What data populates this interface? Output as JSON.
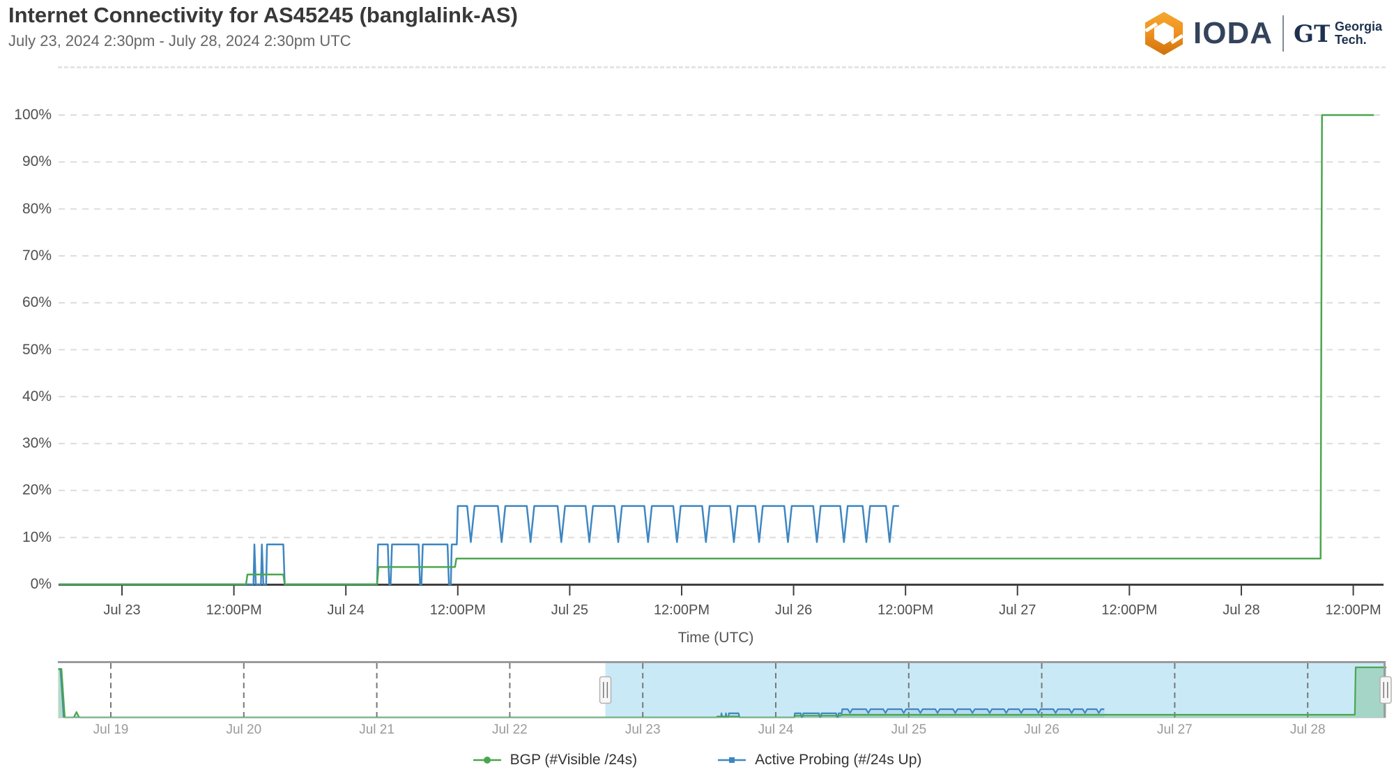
{
  "header": {
    "title": "Internet Connectivity for AS45245 (banglalink-AS)",
    "subtitle": "July 23, 2024 2:30pm - July 28, 2024 2:30pm UTC",
    "brand": "IODA",
    "gt": {
      "mark": "GT",
      "line1": "Georgia",
      "line2": "Tech."
    }
  },
  "colors": {
    "bgp_green": "#4aa64e",
    "probing_blue": "#3e86c2",
    "axis": "#3f3f3f",
    "gridline": "#dcdcdc",
    "nav_selection": "#c6e7f5",
    "ioda_orange_light": "#F5A830",
    "ioda_orange_dark": "#D0720C",
    "navy": "#1d314f"
  },
  "chart_data": {
    "type": "line",
    "title": "Internet Connectivity for AS45245 (banglalink-AS)",
    "subtitle": "July 23, 2024 2:30pm - July 28, 2024 2:30pm UTC",
    "xlabel": "Time (UTC)",
    "ylabel": "",
    "ylim": [
      0,
      100
    ],
    "grid": "horizontal-dashed",
    "legend_position": "bottom-center",
    "x_unit": "hours relative to Jul 23 2024 00:00 UTC",
    "x_range_main": [
      -6.75,
      134.2
    ],
    "x_range_navigator": [
      -105.5,
      134.0
    ],
    "y_ticks": [
      {
        "v": 100,
        "label": "100%"
      },
      {
        "v": 90,
        "label": "90%"
      },
      {
        "v": 80,
        "label": "80%"
      },
      {
        "v": 70,
        "label": "70%"
      },
      {
        "v": 60,
        "label": "60%"
      },
      {
        "v": 50,
        "label": "50%"
      },
      {
        "v": 40,
        "label": "40%"
      },
      {
        "v": 30,
        "label": "30%"
      },
      {
        "v": 20,
        "label": "20%"
      },
      {
        "v": 10,
        "label": "10%"
      },
      {
        "v": 0,
        "label": "0%"
      }
    ],
    "x_ticks_main": [
      {
        "t": 0,
        "label": "Jul 23"
      },
      {
        "t": 12,
        "label": "12:00PM"
      },
      {
        "t": 24,
        "label": "Jul 24"
      },
      {
        "t": 36,
        "label": "12:00PM"
      },
      {
        "t": 48,
        "label": "Jul 25"
      },
      {
        "t": 60,
        "label": "12:00PM"
      },
      {
        "t": 72,
        "label": "Jul 26"
      },
      {
        "t": 84,
        "label": "12:00PM"
      },
      {
        "t": 96,
        "label": "Jul 27"
      },
      {
        "t": 108,
        "label": "12:00PM"
      },
      {
        "t": 120,
        "label": "Jul 28"
      },
      {
        "t": 132,
        "label": "12:00PM"
      }
    ],
    "x_ticks_navigator": [
      {
        "t": -96,
        "label": "Jul 19"
      },
      {
        "t": -72,
        "label": "Jul 20"
      },
      {
        "t": -48,
        "label": "Jul 21"
      },
      {
        "t": -24,
        "label": "Jul 22"
      },
      {
        "t": 0,
        "label": "Jul 23"
      },
      {
        "t": 24,
        "label": "Jul 24"
      },
      {
        "t": 48,
        "label": "Jul 25"
      },
      {
        "t": 72,
        "label": "Jul 26"
      },
      {
        "t": 96,
        "label": "Jul 27"
      },
      {
        "t": 120,
        "label": "Jul 28"
      }
    ],
    "series": [
      {
        "name": "BGP (#Visible /24s)",
        "color": "#4aa64e",
        "marker": "circle",
        "points": [
          [
            -6.75,
            0
          ],
          [
            13.3,
            0
          ],
          [
            13.45,
            2.1
          ],
          [
            17.3,
            2.1
          ],
          [
            17.45,
            0
          ],
          [
            27.35,
            0
          ],
          [
            27.5,
            3.7
          ],
          [
            35.7,
            3.7
          ],
          [
            35.85,
            5.5
          ],
          [
            128.5,
            5.5
          ],
          [
            128.65,
            100
          ],
          [
            134.2,
            100
          ]
        ]
      },
      {
        "name": "Active Probing (#/24s Up)",
        "color": "#3e86c2",
        "marker": "square",
        "points": [
          [
            -6.75,
            0
          ],
          [
            14.1,
            0
          ],
          [
            14.2,
            8.5
          ],
          [
            14.35,
            0
          ],
          [
            14.9,
            0
          ],
          [
            15.0,
            8.5
          ],
          [
            15.15,
            0
          ],
          [
            15.45,
            0
          ],
          [
            15.55,
            8.5
          ],
          [
            17.3,
            8.5
          ],
          [
            17.45,
            0
          ],
          [
            27.35,
            0
          ],
          [
            27.45,
            8.5
          ],
          [
            28.5,
            8.5
          ],
          [
            28.65,
            0
          ],
          [
            28.8,
            0
          ],
          [
            28.95,
            8.5
          ],
          [
            31.8,
            8.5
          ],
          [
            31.95,
            0
          ],
          [
            32.1,
            0
          ],
          [
            32.25,
            8.5
          ],
          [
            34.9,
            8.5
          ],
          [
            35.05,
            0
          ],
          [
            35.25,
            0
          ],
          [
            35.35,
            8.5
          ],
          [
            35.9,
            8.5
          ],
          [
            36.0,
            16.7
          ],
          [
            37.0,
            16.7
          ],
          [
            37.4,
            9
          ],
          [
            37.8,
            16.7
          ],
          [
            40.3,
            16.7
          ],
          [
            40.7,
            9
          ],
          [
            41.1,
            16.7
          ],
          [
            43.4,
            16.7
          ],
          [
            43.8,
            9
          ],
          [
            44.2,
            16.7
          ],
          [
            46.7,
            16.7
          ],
          [
            47.1,
            9
          ],
          [
            47.5,
            16.7
          ],
          [
            49.7,
            16.7
          ],
          [
            50.1,
            9
          ],
          [
            50.5,
            16.7
          ],
          [
            52.8,
            16.7
          ],
          [
            53.2,
            9
          ],
          [
            53.6,
            16.7
          ],
          [
            56.0,
            16.7
          ],
          [
            56.4,
            9
          ],
          [
            56.8,
            16.7
          ],
          [
            59.1,
            16.7
          ],
          [
            59.5,
            9
          ],
          [
            59.9,
            16.7
          ],
          [
            62.2,
            16.7
          ],
          [
            62.6,
            9
          ],
          [
            63.0,
            16.7
          ],
          [
            65.2,
            16.7
          ],
          [
            65.6,
            9
          ],
          [
            66.0,
            16.7
          ],
          [
            67.9,
            16.7
          ],
          [
            68.3,
            9
          ],
          [
            68.7,
            16.7
          ],
          [
            71.0,
            16.7
          ],
          [
            71.4,
            9
          ],
          [
            71.8,
            16.7
          ],
          [
            74.1,
            16.7
          ],
          [
            74.5,
            9
          ],
          [
            74.9,
            16.7
          ],
          [
            77.0,
            16.7
          ],
          [
            77.4,
            9
          ],
          [
            77.8,
            16.7
          ],
          [
            79.4,
            16.7
          ],
          [
            79.8,
            9
          ],
          [
            80.2,
            16.7
          ],
          [
            81.9,
            16.7
          ],
          [
            82.3,
            9
          ],
          [
            82.7,
            16.7
          ],
          [
            83.3,
            16.7
          ]
        ]
      }
    ],
    "navigator": {
      "prefix": {
        "BGP (#Visible /24s)": [
          [
            -105.5,
            97
          ],
          [
            -104.9,
            97
          ],
          [
            -104.3,
            0
          ],
          [
            -102.7,
            0
          ],
          [
            -102.2,
            11
          ],
          [
            -101.7,
            0
          ]
        ],
        "Active Probing (#/24s Up)": [
          [
            -105.5,
            96
          ],
          [
            -105.1,
            96
          ],
          [
            -104.5,
            0
          ]
        ]
      },
      "selection": {
        "start_t": -6.75,
        "end_t": 134.0
      }
    }
  }
}
